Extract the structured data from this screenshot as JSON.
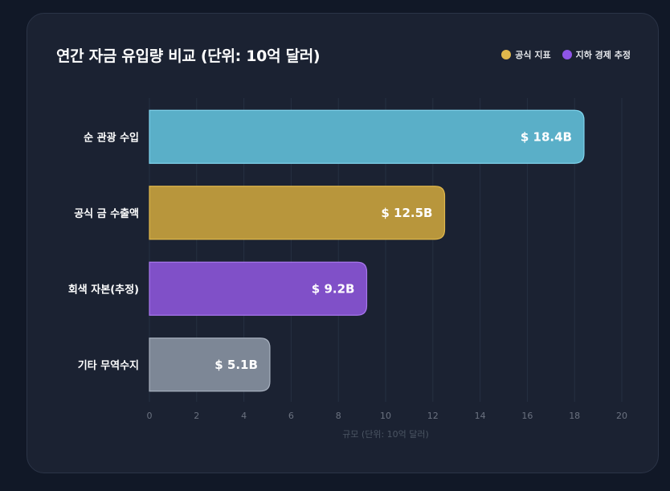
{
  "chart_data": {
    "type": "bar",
    "orientation": "horizontal",
    "title": "연간 자금 유입량 비교 (단위: 10억 달러)",
    "categories": [
      "순 관광 수입",
      "공식 금 수출액",
      "회색 자본(추정)",
      "기타 무역수지"
    ],
    "values": [
      18.4,
      12.5,
      9.2,
      5.1
    ],
    "value_labels": [
      "$ 18.4B",
      "$ 12.5B",
      "$ 9.2B",
      "$ 5.1B"
    ],
    "bar_colors": [
      "#5aafc8",
      "#b8963c",
      "#8050c8",
      "#7d8796"
    ],
    "bar_borders": [
      "#7fd3ec",
      "#e0b84c",
      "#a877ee",
      "#a8b1bf"
    ],
    "xlim": [
      0,
      20
    ],
    "xticks": [
      0,
      2,
      4,
      6,
      8,
      10,
      12,
      14,
      16,
      18,
      20
    ],
    "xlabel": "규모 (단위: 10억 달러)",
    "ylabel": "",
    "grid": true,
    "legend_position": "top-right",
    "legend": [
      {
        "label": "공식 지표",
        "color": "#e0b84c"
      },
      {
        "label": "지하 경제 추정",
        "color": "#8f55e8"
      }
    ]
  }
}
